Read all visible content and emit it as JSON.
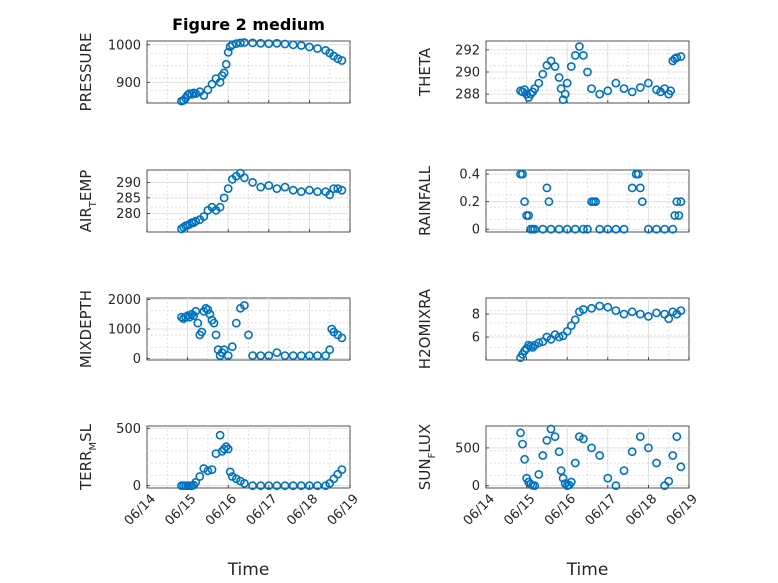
{
  "figure": {
    "title": "Figure 2 medium"
  },
  "chart_data": [
    {
      "id": "pressure",
      "type": "scatter",
      "title": "Figure 2 medium",
      "ylabel": "PRESSURE",
      "ylim": [
        845,
        1010
      ],
      "yticks": [
        900,
        1000
      ],
      "x": [
        0.85,
        0.9,
        0.95,
        1.0,
        1.05,
        1.1,
        1.15,
        1.2,
        1.3,
        1.4,
        1.5,
        1.6,
        1.7,
        1.8,
        1.85,
        1.9,
        1.95,
        2.0,
        2.05,
        2.1,
        2.2,
        2.3,
        2.4,
        2.6,
        2.8,
        3.0,
        3.2,
        3.4,
        3.6,
        3.8,
        4.0,
        4.2,
        4.4,
        4.5,
        4.6,
        4.7,
        4.8
      ],
      "y": [
        850,
        852,
        858,
        866,
        870,
        868,
        872,
        870,
        875,
        865,
        880,
        895,
        910,
        900,
        918,
        925,
        948,
        980,
        995,
        1000,
        1003,
        1005,
        1006,
        1005,
        1004,
        1003,
        1004,
        1002,
        1000,
        998,
        994,
        990,
        985,
        978,
        970,
        963,
        958
      ]
    },
    {
      "id": "theta",
      "type": "scatter",
      "ylabel": "THETA",
      "ylim": [
        287.2,
        292.8
      ],
      "yticks": [
        288,
        290,
        292
      ],
      "x": [
        0.85,
        0.9,
        0.95,
        1.0,
        1.05,
        1.1,
        1.15,
        1.2,
        1.3,
        1.4,
        1.5,
        1.6,
        1.7,
        1.8,
        1.85,
        1.9,
        1.95,
        2.0,
        2.1,
        2.2,
        2.3,
        2.4,
        2.5,
        2.6,
        2.8,
        3.0,
        3.2,
        3.4,
        3.6,
        3.8,
        4.0,
        4.2,
        4.3,
        4.4,
        4.5,
        4.55,
        4.6,
        4.65,
        4.7,
        4.8
      ],
      "y": [
        288.3,
        288.2,
        288.4,
        288.0,
        287.7,
        288.0,
        288.2,
        288.5,
        289.0,
        289.8,
        290.6,
        291.0,
        290.5,
        289.5,
        288.5,
        287.5,
        288.0,
        289.0,
        290.5,
        291.5,
        292.3,
        291.5,
        290.0,
        288.5,
        288.0,
        288.3,
        289.0,
        288.5,
        288.2,
        288.6,
        289.0,
        288.4,
        288.2,
        288.5,
        288.0,
        288.3,
        291.0,
        291.2,
        291.3,
        291.4
      ]
    },
    {
      "id": "air_temp",
      "type": "scatter",
      "ylabel": "AIR",
      "ylabel_sub": "T",
      "ylabel_tail": "EMP",
      "ylim": [
        274,
        294
      ],
      "yticks": [
        280,
        285,
        290
      ],
      "x": [
        0.85,
        0.9,
        0.95,
        1.0,
        1.05,
        1.1,
        1.15,
        1.2,
        1.3,
        1.4,
        1.5,
        1.6,
        1.7,
        1.8,
        1.9,
        2.0,
        2.1,
        2.2,
        2.3,
        2.4,
        2.6,
        2.8,
        3.0,
        3.2,
        3.4,
        3.6,
        3.8,
        4.0,
        4.2,
        4.4,
        4.5,
        4.6,
        4.7,
        4.8
      ],
      "y": [
        275,
        275.5,
        276,
        276.2,
        276.5,
        277,
        277,
        277.5,
        278,
        279,
        281,
        282,
        281,
        282,
        285,
        288,
        291,
        292,
        293,
        291.5,
        290,
        288.5,
        289,
        288,
        288.5,
        287.5,
        287,
        287.5,
        287,
        287,
        286,
        288,
        288,
        287.5
      ]
    },
    {
      "id": "rainfall",
      "type": "scatter",
      "ylabel": "RAINFALL",
      "ylim": [
        -0.02,
        0.43
      ],
      "yticks": [
        0,
        0.2,
        0.4
      ],
      "x": [
        0.85,
        0.9,
        0.95,
        1.0,
        1.05,
        1.1,
        1.15,
        1.2,
        1.4,
        1.6,
        1.8,
        2.0,
        2.2,
        2.4,
        2.5,
        2.6,
        2.65,
        2.7,
        2.8,
        3.0,
        3.2,
        3.4,
        3.6,
        3.7,
        3.75,
        3.8,
        3.85,
        4.0,
        4.2,
        4.4,
        4.6,
        4.65,
        4.7,
        4.75,
        4.8,
        1.5,
        1.55
      ],
      "y": [
        0.4,
        0.4,
        0.2,
        0.1,
        0.1,
        0,
        0,
        0,
        0,
        0,
        0,
        0,
        0,
        0,
        0,
        0.2,
        0.2,
        0.2,
        0,
        0,
        0,
        0,
        0.3,
        0.4,
        0.4,
        0.3,
        0.2,
        0,
        0,
        0,
        0,
        0.1,
        0.2,
        0.1,
        0.2,
        0.3,
        0.2
      ]
    },
    {
      "id": "mixdepth",
      "type": "scatter",
      "ylabel": "MIXDEPTH",
      "ylim": [
        -50,
        2050
      ],
      "yticks": [
        0,
        1000,
        2000
      ],
      "x": [
        0.85,
        0.9,
        0.95,
        1.0,
        1.05,
        1.1,
        1.15,
        1.2,
        1.25,
        1.3,
        1.35,
        1.4,
        1.45,
        1.5,
        1.55,
        1.6,
        1.65,
        1.7,
        1.75,
        1.8,
        1.85,
        1.9,
        2.0,
        2.1,
        2.2,
        2.3,
        2.4,
        2.5,
        2.6,
        2.8,
        3.0,
        3.2,
        3.4,
        3.6,
        3.8,
        4.0,
        4.2,
        4.4,
        4.5,
        4.55,
        4.6,
        4.7,
        4.8
      ],
      "y": [
        1400,
        1350,
        1400,
        1450,
        1400,
        1500,
        1450,
        1600,
        1200,
        800,
        900,
        1600,
        1700,
        1650,
        1500,
        1300,
        1200,
        800,
        300,
        100,
        200,
        300,
        100,
        400,
        1200,
        1700,
        1800,
        800,
        100,
        100,
        100,
        200,
        100,
        100,
        100,
        100,
        100,
        100,
        300,
        1000,
        900,
        800,
        700
      ]
    },
    {
      "id": "h2omixra",
      "type": "scatter",
      "ylabel": "H2OMIXRA",
      "ylim": [
        4,
        9.4
      ],
      "yticks": [
        6,
        8
      ],
      "x": [
        0.85,
        0.9,
        0.95,
        1.0,
        1.05,
        1.1,
        1.15,
        1.2,
        1.3,
        1.4,
        1.5,
        1.6,
        1.7,
        1.8,
        1.9,
        2.0,
        2.1,
        2.2,
        2.3,
        2.4,
        2.6,
        2.8,
        3.0,
        3.2,
        3.4,
        3.6,
        3.8,
        4.0,
        4.2,
        4.4,
        4.5,
        4.6,
        4.7,
        4.8
      ],
      "y": [
        4.2,
        4.5,
        4.8,
        5.0,
        5.3,
        5.2,
        5.1,
        5.3,
        5.5,
        5.6,
        6.0,
        5.8,
        6.2,
        6.0,
        6.1,
        6.5,
        7.0,
        7.5,
        8.2,
        8.4,
        8.5,
        8.7,
        8.6,
        8.3,
        8.0,
        8.2,
        8.0,
        7.8,
        8.1,
        8.0,
        7.6,
        8.2,
        8.0,
        8.3
      ]
    },
    {
      "id": "terr_msl",
      "type": "scatter",
      "ylabel": "TERR",
      "ylabel_sub": "M",
      "ylabel_tail": "SL",
      "ylim": [
        -20,
        520
      ],
      "yticks": [
        0,
        500
      ],
      "x": [
        0.85,
        0.9,
        0.95,
        1.0,
        1.05,
        1.1,
        1.15,
        1.2,
        1.3,
        1.4,
        1.5,
        1.6,
        1.7,
        1.8,
        1.85,
        1.9,
        1.95,
        2.0,
        2.05,
        2.1,
        2.2,
        2.3,
        2.4,
        2.6,
        2.8,
        3.0,
        3.2,
        3.4,
        3.6,
        3.8,
        4.0,
        4.2,
        4.4,
        4.5,
        4.6,
        4.7,
        4.8
      ],
      "y": [
        0,
        0,
        0,
        0,
        0,
        0,
        5,
        30,
        80,
        150,
        130,
        140,
        280,
        440,
        300,
        320,
        340,
        320,
        120,
        80,
        60,
        40,
        20,
        0,
        0,
        0,
        0,
        0,
        0,
        0,
        0,
        0,
        0,
        20,
        60,
        100,
        140
      ]
    },
    {
      "id": "sun_flux",
      "type": "scatter",
      "ylabel": "SUN",
      "ylabel_sub": "F",
      "ylabel_tail": "LUX",
      "ylim": [
        -30,
        790
      ],
      "yticks": [
        0,
        500
      ],
      "x": [
        0.85,
        0.9,
        0.95,
        1.0,
        1.05,
        1.1,
        1.15,
        1.2,
        1.3,
        1.4,
        1.5,
        1.6,
        1.7,
        1.8,
        1.85,
        1.9,
        1.95,
        2.0,
        2.05,
        2.1,
        2.2,
        2.3,
        2.4,
        2.6,
        2.8,
        3.0,
        3.2,
        3.4,
        3.6,
        3.8,
        4.0,
        4.2,
        4.4,
        4.5,
        4.6,
        4.7,
        4.8
      ],
      "y": [
        700,
        550,
        350,
        100,
        50,
        20,
        5,
        0,
        150,
        400,
        600,
        750,
        650,
        450,
        200,
        100,
        30,
        0,
        10,
        50,
        300,
        650,
        620,
        500,
        400,
        100,
        0,
        200,
        450,
        650,
        500,
        300,
        0,
        60,
        400,
        650,
        250
      ]
    }
  ],
  "xaxis": {
    "label": "Time",
    "ticks": [
      "06/14",
      "06/15",
      "06/16",
      "06/17",
      "06/18",
      "06/19"
    ],
    "range": [
      0,
      5
    ]
  }
}
